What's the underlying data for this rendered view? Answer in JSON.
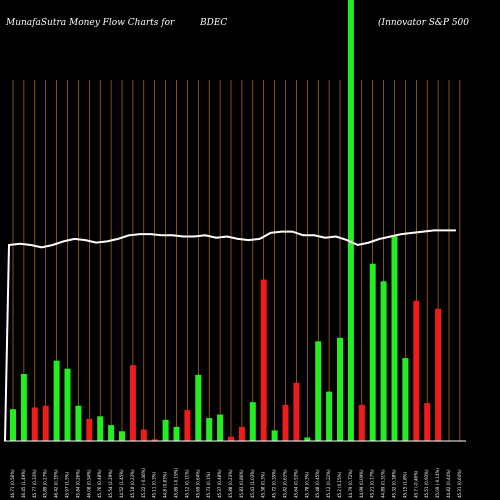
{
  "header": {
    "left": "MunafaSutra  Money Flow  Charts for",
    "center": "BDEC",
    "right": "(Innovator S&P 500"
  },
  "colors": {
    "background": "#000000",
    "grid": "#d38a10",
    "up": "#22ee22",
    "down": "#ee1c1c",
    "line": "#ffffff"
  },
  "chart_data": {
    "type": "bar",
    "title": "",
    "grid": true,
    "categories": [
      "05 Fri Dec 2025",
      "04 Thu Dec 2025",
      "03 Wed Dec 2025",
      "02 Tue Dec 2025",
      "01 Mon Dec 2025",
      "28 Fri Nov 2025",
      "26 Wed Nov 2025",
      "25 Tue Nov 2025",
      "24 Mon Nov 2025",
      "21 Fri Nov 2025",
      "20 Thu Nov 2025",
      "19 Wed Nov 2025",
      "18 Tue Nov 2025",
      "17 Mon Nov 2025",
      "14 Fri Nov 2025",
      "13 Thu Nov 2025",
      "12 Wed Nov 2025",
      "11 Tue Nov 2025",
      "10 Mon Nov 2025",
      "07 Fri Nov 2025",
      "06 Thu Nov 2025",
      "05 Wed Nov 2025",
      "04 Tue Nov 2025",
      "03 Mon Nov 2025",
      "31 Fri Oct 2025",
      "30 Thu Oct 2025",
      "29 Wed Oct 2025",
      "28 Tue Oct 2025",
      "27 Mon Oct 2025",
      "24 Fri Oct 2025",
      "23 Thu Oct 2025",
      "22 Wed Oct 2025",
      "21 Tue Oct 2025",
      "20 Mon Oct 2025",
      "17 Fri Oct 2025",
      "16 Thu Oct 2025",
      "15 Wed Oct 2025",
      "14 Tue Oct 2025",
      "13 Mon Oct 2025",
      "10 Fri Oct 2025",
      "09 Thu Oct 2025",
      "08 Wed Oct 2025",
      "07 Tue Oct 2025",
      "06 Mon Oct 2025",
      "03 Fri Oct 2025",
      "02 Thu Oct 2025",
      "01 Wed Oct 2025",
      "30 Tue Sep 2025",
      "29 Mon Sep 2025",
      "26 Fri Sep 2025"
    ],
    "tick_labels": [
      "46.71 (0.56%)",
      "46.45 (1.49%)",
      "45.77 (0.33%)",
      "45.89 (0.27%)",
      "46.42 (0.35%)",
      "45.97 (1.5%)",
      "45.84 (0.26%)",
      "46.08 (0.54%)",
      "45.76 (0.48%)",
      "45.54 (2.29%)",
      "44.52 (1.45%)",
      "45.18 (0.23%)",
      "45.22 (-0.46%)",
      "45.11 (0.3%)",
      "44.8 (0.83%)",
      "45.89 (-0.19%)",
      "45.12 (0.11%)",
      "45.69 (0.64%)",
      "45.73 (0.1%)",
      "45.37 (0.48%)",
      "45.88 (0.23%)",
      "45.83 (0.86%)",
      "45.43 (1.03%)",
      "45.38 (0.3%)",
      "45.72 (0.35%)",
      "45.82 (0.63%)",
      "45.64 (0.53%)",
      "45.78 (0.3%)",
      "45.48 (0.45%)",
      "45.12 (0.22%)",
      "45.2 (0.15%)",
      "44.79 (0.72%)",
      "44.99 (0.09%)",
      "45.21 (0.17%)",
      "44.89 (0.31%)",
      "45.32 (0.38%)",
      "45.15 (1.8%)",
      "45.7 (-0.46%)",
      "45.51 (0.93%)",
      "45.09 (-0.14%)",
      "44.82 (0.44%)",
      "45.31 (0.64%)",
      "45.08 (0.32%)",
      "45.42 (0.25%)",
      "44.71 (0.44%)",
      "44.94 (0.47%)",
      "44.67 (0.28%)",
      "44.56 (0.11%)",
      "44.71 (0.09%)",
      "44.97 (0.22%)"
    ],
    "series": [
      {
        "values": [
          36,
          76,
          38,
          40,
          91,
          82,
          40,
          25,
          28,
          18,
          11,
          86,
          13,
          2,
          24,
          16,
          35,
          75,
          26,
          30,
          5,
          16,
          44,
          183,
          12,
          41,
          66,
          4,
          113,
          56,
          117,
          500,
          41,
          201,
          181,
          232,
          94,
          159,
          43,
          150,
          0,
          0,
          0,
          0,
          0,
          0,
          0,
          0,
          0,
          0
        ],
        "direction": [
          "up",
          "up",
          "down",
          "down",
          "up",
          "up",
          "up",
          "down",
          "up",
          "up",
          "up",
          "down",
          "down",
          "down",
          "up",
          "up",
          "down",
          "up",
          "up",
          "up",
          "down",
          "down",
          "up",
          "down",
          "up",
          "down",
          "red",
          "up",
          "up",
          "up",
          "up",
          "up",
          "down",
          "up",
          "up",
          "up",
          "up",
          "down",
          "red",
          "red",
          "",
          "",
          "",
          "",
          "",
          "",
          "",
          "",
          "",
          ""
        ]
      },
      {
        "values": [
          45.2,
          45.21,
          45.2,
          45.18,
          45.2,
          45.23,
          45.25,
          45.24,
          45.22,
          45.23,
          45.25,
          45.28,
          45.29,
          45.29,
          45.28,
          45.28,
          45.27,
          45.27,
          45.28,
          45.26,
          45.27,
          45.25,
          45.24,
          45.25,
          45.3,
          45.31,
          45.31,
          45.28,
          45.28,
          45.26,
          45.27,
          45.24,
          45.2,
          45.22,
          45.25,
          45.27,
          45.29,
          45.3,
          45.31,
          45.32,
          45.32,
          45.32,
          45.33,
          45.33,
          45.34,
          45.34,
          45.33,
          45.33,
          45.33,
          45.33
        ]
      }
    ]
  }
}
